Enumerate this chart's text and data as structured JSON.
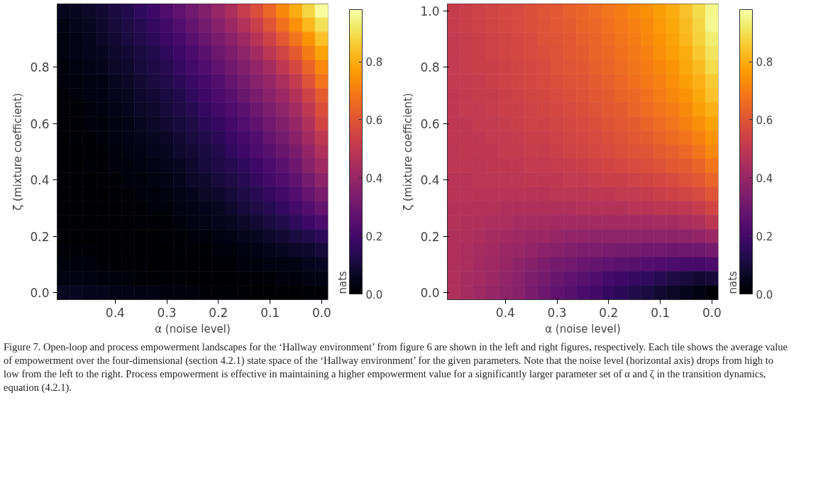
{
  "chart_data": [
    {
      "type": "heatmap",
      "xlabel": "α (noise level)",
      "ylabel": "ζ (mixture coefficient)",
      "clabel": "nats",
      "categories": [
        null,
        null,
        null,
        null,
        "0.4",
        null,
        null,
        null,
        "0.3",
        null,
        null,
        null,
        "0.2",
        null,
        null,
        null,
        "0.1",
        null,
        null,
        null,
        "0.0"
      ],
      "y_categories": [
        null,
        null,
        null,
        null,
        "0.8",
        null,
        null,
        null,
        "0.6",
        null,
        null,
        null,
        "0.4",
        null,
        null,
        null,
        "0.2",
        null,
        null,
        null,
        "0.0"
      ],
      "clim": [
        0,
        0.98
      ],
      "cticks": [
        {
          "value": 0,
          "label": "0.0"
        },
        0.2,
        0.4,
        0.6,
        0.8
      ],
      "cells": [
        [
          0.05,
          0.06,
          0.07,
          0.09,
          0.11,
          0.13,
          0.16,
          0.19,
          0.23,
          0.27,
          0.31,
          0.35,
          0.4,
          0.45,
          0.52,
          0.58,
          0.65,
          0.72,
          0.8,
          0.88,
          0.97
        ],
        [
          0.04,
          0.05,
          0.06,
          0.08,
          0.1,
          0.12,
          0.14,
          0.17,
          0.2,
          0.24,
          0.28,
          0.32,
          0.36,
          0.41,
          0.47,
          0.53,
          0.6,
          0.67,
          0.74,
          0.82,
          0.9
        ],
        [
          0.03,
          0.04,
          0.05,
          0.07,
          0.09,
          0.11,
          0.13,
          0.15,
          0.18,
          0.21,
          0.25,
          0.29,
          0.33,
          0.37,
          0.42,
          0.48,
          0.54,
          0.61,
          0.68,
          0.75,
          0.84
        ],
        [
          0.03,
          0.04,
          0.05,
          0.06,
          0.08,
          0.09,
          0.11,
          0.13,
          0.16,
          0.19,
          0.22,
          0.26,
          0.3,
          0.34,
          0.38,
          0.43,
          0.49,
          0.55,
          0.62,
          0.7,
          0.78
        ],
        [
          0.02,
          0.03,
          0.04,
          0.05,
          0.07,
          0.08,
          0.1,
          0.12,
          0.14,
          0.17,
          0.2,
          0.23,
          0.27,
          0.31,
          0.35,
          0.39,
          0.44,
          0.5,
          0.56,
          0.64,
          0.72
        ],
        [
          0.02,
          0.02,
          0.03,
          0.04,
          0.06,
          0.07,
          0.09,
          0.11,
          0.13,
          0.15,
          0.18,
          0.21,
          0.24,
          0.28,
          0.32,
          0.36,
          0.4,
          0.45,
          0.51,
          0.59,
          0.68
        ],
        [
          0.01,
          0.02,
          0.03,
          0.04,
          0.05,
          0.06,
          0.08,
          0.09,
          0.11,
          0.13,
          0.16,
          0.19,
          0.22,
          0.25,
          0.29,
          0.33,
          0.37,
          0.41,
          0.47,
          0.54,
          0.62
        ],
        [
          0.01,
          0.01,
          0.02,
          0.03,
          0.04,
          0.05,
          0.07,
          0.08,
          0.1,
          0.12,
          0.14,
          0.17,
          0.2,
          0.23,
          0.26,
          0.3,
          0.34,
          0.38,
          0.43,
          0.5,
          0.58
        ],
        [
          0.01,
          0.01,
          0.02,
          0.02,
          0.03,
          0.04,
          0.06,
          0.07,
          0.09,
          0.1,
          0.12,
          0.15,
          0.17,
          0.2,
          0.24,
          0.27,
          0.31,
          0.35,
          0.4,
          0.46,
          0.55
        ],
        [
          0.0,
          0.01,
          0.01,
          0.02,
          0.03,
          0.04,
          0.05,
          0.06,
          0.07,
          0.09,
          0.11,
          0.13,
          0.15,
          0.18,
          0.21,
          0.24,
          0.28,
          0.32,
          0.37,
          0.43,
          0.5
        ],
        [
          0.0,
          0.0,
          0.01,
          0.01,
          0.02,
          0.03,
          0.04,
          0.05,
          0.06,
          0.08,
          0.09,
          0.11,
          0.13,
          0.16,
          0.19,
          0.22,
          0.25,
          0.29,
          0.33,
          0.39,
          0.46
        ],
        [
          0.0,
          0.0,
          0.01,
          0.01,
          0.02,
          0.02,
          0.03,
          0.04,
          0.05,
          0.06,
          0.08,
          0.1,
          0.12,
          0.14,
          0.16,
          0.19,
          0.22,
          0.26,
          0.3,
          0.36,
          0.42
        ],
        [
          0.0,
          0.0,
          0.0,
          0.01,
          0.01,
          0.02,
          0.02,
          0.03,
          0.04,
          0.05,
          0.07,
          0.08,
          0.1,
          0.12,
          0.14,
          0.17,
          0.2,
          0.23,
          0.27,
          0.32,
          0.38
        ],
        [
          0.0,
          0.0,
          0.0,
          0.0,
          0.01,
          0.01,
          0.02,
          0.02,
          0.03,
          0.04,
          0.05,
          0.07,
          0.08,
          0.1,
          0.12,
          0.14,
          0.17,
          0.2,
          0.24,
          0.28,
          0.33
        ],
        [
          0.0,
          0.0,
          0.0,
          0.0,
          0.0,
          0.01,
          0.01,
          0.02,
          0.02,
          0.03,
          0.04,
          0.05,
          0.06,
          0.08,
          0.1,
          0.12,
          0.14,
          0.17,
          0.2,
          0.24,
          0.28
        ],
        [
          0.0,
          0.0,
          0.0,
          0.0,
          0.0,
          0.0,
          0.01,
          0.01,
          0.01,
          0.02,
          0.03,
          0.04,
          0.05,
          0.06,
          0.07,
          0.09,
          0.11,
          0.13,
          0.16,
          0.19,
          0.22
        ],
        [
          0.0,
          0.0,
          0.0,
          0.0,
          0.0,
          0.0,
          0.0,
          0.0,
          0.01,
          0.01,
          0.02,
          0.02,
          0.03,
          0.04,
          0.05,
          0.06,
          0.08,
          0.09,
          0.11,
          0.13,
          0.15
        ],
        [
          0.01,
          0.01,
          0.01,
          0.0,
          0.0,
          0.0,
          0.0,
          0.0,
          0.0,
          0.01,
          0.01,
          0.01,
          0.02,
          0.02,
          0.03,
          0.04,
          0.05,
          0.06,
          0.07,
          0.08,
          0.1
        ],
        [
          0.02,
          0.02,
          0.02,
          0.01,
          0.01,
          0.01,
          0.01,
          0.0,
          0.0,
          0.0,
          0.0,
          0.01,
          0.01,
          0.01,
          0.02,
          0.02,
          0.03,
          0.03,
          0.04,
          0.05,
          0.06
        ],
        [
          0.03,
          0.03,
          0.03,
          0.02,
          0.02,
          0.02,
          0.01,
          0.01,
          0.01,
          0.01,
          0.0,
          0.0,
          0.0,
          0.0,
          0.01,
          0.01,
          0.01,
          0.02,
          0.02,
          0.03,
          0.03
        ],
        [
          0.06,
          0.06,
          0.05,
          0.05,
          0.04,
          0.04,
          0.03,
          0.03,
          0.02,
          0.02,
          0.02,
          0.01,
          0.01,
          0.01,
          0.01,
          0.0,
          0.0,
          0.0,
          0.0,
          0.01,
          0.01
        ]
      ],
      "annotations": [
        "Figure 7. Open-loop and process empowerment landscapes for the ‘Hallway environment’ from figure 6 are shown in the left and right figures, respectively. Each tile shows the average value of empowerment over the four-dimensional (section 4.2.1) state space of the ‘Hallway environment’ for the given parameters. Note that the noise level (horizontal axis) drops from high to low from the left to the right. Process empowerment is effective in maintaining a higher empowerment value for a significantly larger parameter set of α and ζ in the transition dynamics, equation (4.2.1)."
      ]
    },
    {
      "type": "heatmap",
      "xlabel": "α (noise level)",
      "ylabel": "ζ (mixture coefficient)",
      "clabel": "nats",
      "categories": [
        null,
        null,
        null,
        null,
        "0.4",
        null,
        null,
        null,
        "0.3",
        null,
        null,
        null,
        "0.2",
        null,
        null,
        null,
        "0.1",
        null,
        null,
        null,
        "0.0"
      ],
      "y_categories": [
        "1.0",
        null,
        null,
        null,
        "0.8",
        null,
        null,
        null,
        "0.6",
        null,
        null,
        null,
        "0.4",
        null,
        null,
        null,
        "0.2",
        null,
        null,
        null,
        "0.0"
      ],
      "clim": [
        0,
        0.98
      ],
      "cticks": [
        {
          "value": 0,
          "label": "0.0"
        },
        0.2,
        0.4,
        0.6,
        0.8
      ],
      "cells": [
        [
          0.52,
          0.53,
          0.54,
          0.55,
          0.56,
          0.57,
          0.58,
          0.6,
          0.61,
          0.63,
          0.64,
          0.66,
          0.68,
          0.7,
          0.72,
          0.74,
          0.77,
          0.8,
          0.84,
          0.89,
          0.95
        ],
        [
          0.52,
          0.53,
          0.54,
          0.55,
          0.56,
          0.57,
          0.58,
          0.59,
          0.61,
          0.62,
          0.64,
          0.65,
          0.67,
          0.69,
          0.71,
          0.73,
          0.76,
          0.79,
          0.83,
          0.88,
          0.96
        ],
        [
          0.51,
          0.52,
          0.53,
          0.54,
          0.55,
          0.56,
          0.57,
          0.59,
          0.6,
          0.61,
          0.63,
          0.64,
          0.66,
          0.68,
          0.7,
          0.72,
          0.75,
          0.78,
          0.82,
          0.87,
          0.93
        ],
        [
          0.51,
          0.52,
          0.53,
          0.54,
          0.55,
          0.56,
          0.57,
          0.58,
          0.59,
          0.61,
          0.62,
          0.64,
          0.65,
          0.67,
          0.69,
          0.71,
          0.74,
          0.77,
          0.8,
          0.85,
          0.91
        ],
        [
          0.51,
          0.52,
          0.53,
          0.53,
          0.54,
          0.55,
          0.56,
          0.57,
          0.59,
          0.6,
          0.61,
          0.63,
          0.64,
          0.66,
          0.68,
          0.7,
          0.72,
          0.75,
          0.79,
          0.83,
          0.89
        ],
        [
          0.51,
          0.51,
          0.52,
          0.53,
          0.54,
          0.55,
          0.56,
          0.57,
          0.58,
          0.59,
          0.6,
          0.62,
          0.63,
          0.65,
          0.67,
          0.69,
          0.71,
          0.74,
          0.77,
          0.81,
          0.86
        ],
        [
          0.5,
          0.51,
          0.52,
          0.52,
          0.53,
          0.54,
          0.55,
          0.56,
          0.57,
          0.58,
          0.59,
          0.61,
          0.62,
          0.64,
          0.65,
          0.67,
          0.7,
          0.72,
          0.75,
          0.79,
          0.84
        ],
        [
          0.5,
          0.51,
          0.51,
          0.52,
          0.53,
          0.53,
          0.54,
          0.55,
          0.56,
          0.57,
          0.58,
          0.6,
          0.61,
          0.62,
          0.64,
          0.66,
          0.68,
          0.7,
          0.73,
          0.77,
          0.81
        ],
        [
          0.5,
          0.5,
          0.51,
          0.51,
          0.52,
          0.53,
          0.54,
          0.54,
          0.55,
          0.56,
          0.57,
          0.58,
          0.6,
          0.61,
          0.62,
          0.64,
          0.66,
          0.68,
          0.71,
          0.74,
          0.78
        ],
        [
          0.5,
          0.5,
          0.5,
          0.51,
          0.51,
          0.52,
          0.53,
          0.53,
          0.54,
          0.55,
          0.56,
          0.57,
          0.58,
          0.59,
          0.61,
          0.62,
          0.64,
          0.66,
          0.68,
          0.71,
          0.75
        ],
        [
          0.49,
          0.5,
          0.5,
          0.5,
          0.51,
          0.51,
          0.52,
          0.52,
          0.53,
          0.54,
          0.55,
          0.56,
          0.57,
          0.58,
          0.59,
          0.6,
          0.62,
          0.63,
          0.65,
          0.68,
          0.72
        ],
        [
          0.49,
          0.49,
          0.49,
          0.5,
          0.5,
          0.5,
          0.51,
          0.51,
          0.52,
          0.52,
          0.53,
          0.54,
          0.55,
          0.56,
          0.57,
          0.58,
          0.59,
          0.61,
          0.62,
          0.64,
          0.68
        ],
        [
          0.48,
          0.48,
          0.49,
          0.49,
          0.49,
          0.49,
          0.5,
          0.5,
          0.5,
          0.51,
          0.51,
          0.52,
          0.53,
          0.53,
          0.54,
          0.55,
          0.56,
          0.57,
          0.59,
          0.61,
          0.64
        ],
        [
          0.48,
          0.48,
          0.48,
          0.48,
          0.48,
          0.48,
          0.48,
          0.48,
          0.49,
          0.49,
          0.49,
          0.5,
          0.5,
          0.51,
          0.51,
          0.52,
          0.53,
          0.54,
          0.55,
          0.57,
          0.6
        ],
        [
          0.47,
          0.47,
          0.47,
          0.47,
          0.46,
          0.46,
          0.46,
          0.46,
          0.46,
          0.46,
          0.47,
          0.47,
          0.47,
          0.47,
          0.48,
          0.48,
          0.49,
          0.49,
          0.5,
          0.52,
          0.55
        ],
        [
          0.47,
          0.46,
          0.46,
          0.45,
          0.45,
          0.44,
          0.44,
          0.44,
          0.43,
          0.43,
          0.43,
          0.43,
          0.43,
          0.43,
          0.43,
          0.43,
          0.44,
          0.44,
          0.45,
          0.46,
          0.49
        ],
        [
          0.46,
          0.46,
          0.45,
          0.44,
          0.43,
          0.42,
          0.41,
          0.41,
          0.4,
          0.39,
          0.39,
          0.38,
          0.38,
          0.38,
          0.38,
          0.38,
          0.38,
          0.38,
          0.38,
          0.39,
          0.41
        ],
        [
          0.46,
          0.45,
          0.44,
          0.43,
          0.41,
          0.4,
          0.39,
          0.37,
          0.36,
          0.35,
          0.34,
          0.34,
          0.33,
          0.32,
          0.32,
          0.31,
          0.31,
          0.3,
          0.3,
          0.3,
          0.32
        ],
        [
          0.46,
          0.45,
          0.43,
          0.42,
          0.4,
          0.38,
          0.36,
          0.34,
          0.32,
          0.31,
          0.29,
          0.28,
          0.27,
          0.26,
          0.25,
          0.24,
          0.23,
          0.22,
          0.21,
          0.21,
          0.22
        ],
        [
          0.46,
          0.44,
          0.43,
          0.41,
          0.39,
          0.37,
          0.34,
          0.32,
          0.29,
          0.27,
          0.25,
          0.23,
          0.21,
          0.19,
          0.17,
          0.16,
          0.14,
          0.12,
          0.1,
          0.09,
          0.1
        ],
        [
          0.46,
          0.44,
          0.42,
          0.4,
          0.38,
          0.36,
          0.33,
          0.3,
          0.27,
          0.25,
          0.22,
          0.2,
          0.17,
          0.15,
          0.13,
          0.11,
          0.09,
          0.07,
          0.05,
          0.03,
          0.01
        ]
      ]
    }
  ]
}
